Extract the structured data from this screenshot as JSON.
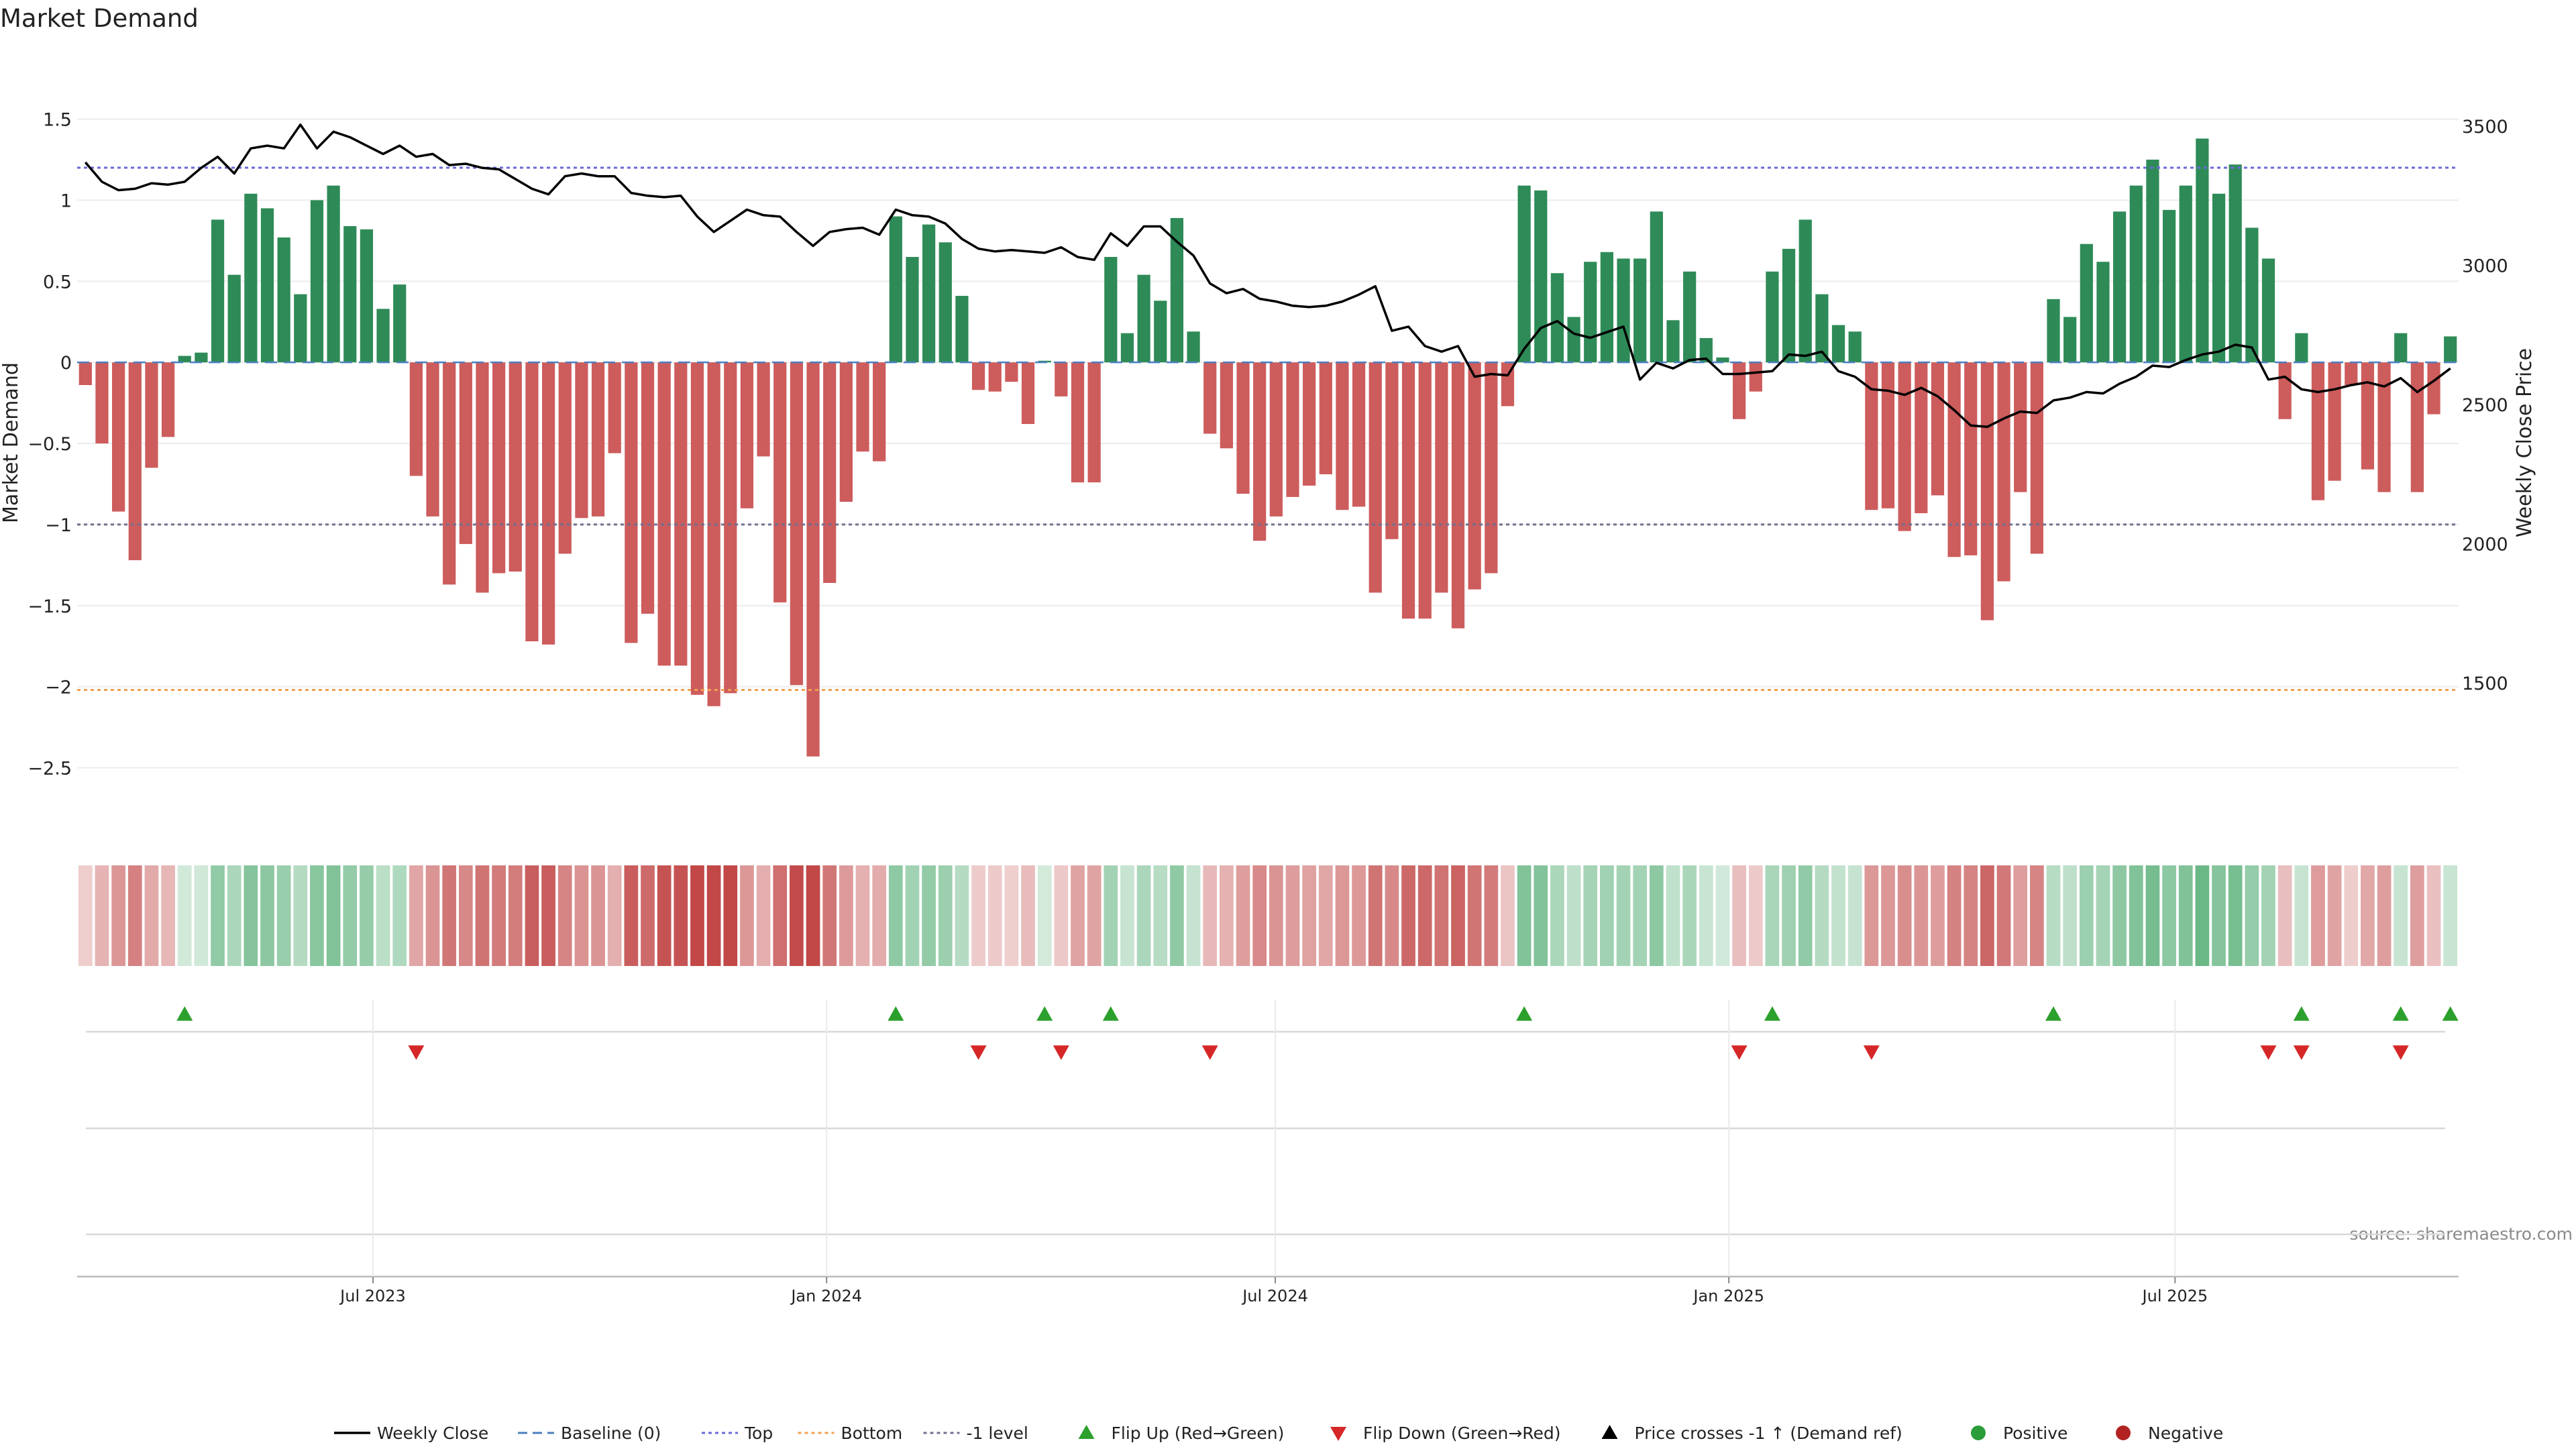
{
  "chart_data": {
    "type": "bar",
    "title": "Market Demand",
    "ylabel": "Market Demand",
    "y2label": "Weekly Close Price",
    "source": "source: sharemaestro.com",
    "ylim": [
      -2.75,
      1.8
    ],
    "y2lim": [
      1050,
      3700
    ],
    "yticks": [
      "1.5",
      "1",
      "0.5",
      "0",
      "−0.5",
      "−1",
      "−1.5",
      "−2",
      "−2.5"
    ],
    "y2ticks": [
      "3500",
      "3000",
      "2500",
      "2000",
      "1500"
    ],
    "reference_lines": {
      "top": 1.2,
      "bottom": -2.02,
      "minus_one": -1,
      "baseline": 0
    },
    "x_start": "2023-03-03",
    "x_end": "2025-10-24",
    "xticks": [
      {
        "date": "2023-07-01",
        "label": "Jul 2023"
      },
      {
        "date": "2024-01-01",
        "label": "Jan 2024"
      },
      {
        "date": "2024-07-01",
        "label": "Jul 2024"
      },
      {
        "date": "2025-01-01",
        "label": "Jan 2025"
      },
      {
        "date": "2025-07-01",
        "label": "Jul 2025"
      }
    ],
    "colors": {
      "positive": "#2e8b57",
      "negative": "#cd5c5c",
      "price": "#000000",
      "top": "#6a6ad8",
      "bottom": "#f0a050",
      "minus_one": "#707090",
      "flip_up": "#2ca02c",
      "flip_down": "#d62728"
    },
    "demand": [
      -0.14,
      -0.5,
      -0.92,
      -1.22,
      -0.65,
      -0.46,
      0.04,
      0.06,
      0.88,
      0.54,
      1.04,
      0.95,
      0.77,
      0.42,
      1.0,
      1.09,
      0.84,
      0.82,
      0.33,
      0.48,
      -0.7,
      -0.95,
      -1.37,
      -1.12,
      -1.42,
      -1.3,
      -1.29,
      -1.72,
      -1.74,
      -1.18,
      -0.96,
      -0.95,
      -0.56,
      -1.73,
      -1.55,
      -1.87,
      -1.87,
      -2.05,
      -2.12,
      -2.04,
      -0.9,
      -0.58,
      -1.48,
      -1.99,
      -2.43,
      -1.36,
      -0.86,
      -0.55,
      -0.61,
      0.9,
      0.65,
      0.85,
      0.74,
      0.41,
      -0.17,
      -0.18,
      -0.12,
      -0.38,
      0.01,
      -0.21,
      -0.74,
      -0.74,
      0.65,
      0.18,
      0.54,
      0.38,
      0.89,
      0.19,
      -0.44,
      -0.53,
      -0.81,
      -1.1,
      -0.95,
      -0.83,
      -0.76,
      -0.69,
      -0.91,
      -0.89,
      -1.42,
      -1.09,
      -1.58,
      -1.58,
      -1.42,
      -1.64,
      -1.4,
      -1.3,
      -0.27,
      1.09,
      1.06,
      0.55,
      0.28,
      0.62,
      0.68,
      0.64,
      0.64,
      0.93,
      0.26,
      0.56,
      0.15,
      0.03,
      -0.35,
      -0.18,
      0.56,
      0.7,
      0.88,
      0.42,
      0.23,
      0.19,
      -0.91,
      -0.9,
      -1.04,
      -0.93,
      -0.82,
      -1.2,
      -1.19,
      -1.59,
      -1.35,
      -0.8,
      -1.18,
      0.39,
      0.28,
      0.73,
      0.62,
      0.93,
      1.09,
      1.25,
      0.94,
      1.09,
      1.38,
      1.04,
      1.22,
      0.83,
      0.64,
      -0.35,
      0.18,
      -0.85,
      -0.73,
      -0.14,
      -0.66,
      -0.8,
      0.18,
      -0.8,
      -0.32,
      0.16
    ],
    "weekly_close": [
      3370,
      3300,
      3270,
      3275,
      3295,
      3290,
      3300,
      3350,
      3390,
      3330,
      3420,
      3430,
      3420,
      3505,
      3420,
      3480,
      3460,
      3430,
      3400,
      3430,
      3390,
      3400,
      3360,
      3365,
      3350,
      3345,
      3310,
      3275,
      3255,
      3320,
      3330,
      3320,
      3320,
      3260,
      3250,
      3245,
      3250,
      3175,
      3120,
      3160,
      3200,
      3180,
      3175,
      3120,
      3070,
      3120,
      3130,
      3135,
      3110,
      3200,
      3180,
      3175,
      3150,
      3095,
      3060,
      3050,
      3055,
      3050,
      3045,
      3065,
      3030,
      3020,
      3115,
      3070,
      3140,
      3140,
      3085,
      3035,
      2935,
      2900,
      2915,
      2880,
      2870,
      2855,
      2850,
      2855,
      2870,
      2895,
      2925,
      2765,
      2780,
      2710,
      2690,
      2710,
      2600,
      2610,
      2605,
      2700,
      2775,
      2800,
      2755,
      2740,
      2760,
      2780,
      2590,
      2650,
      2630,
      2660,
      2665,
      2610,
      2610,
      2615,
      2620,
      2680,
      2675,
      2690,
      2620,
      2600,
      2555,
      2550,
      2535,
      2560,
      2530,
      2480,
      2425,
      2420,
      2450,
      2475,
      2470,
      2515,
      2525,
      2545,
      2540,
      2575,
      2600,
      2640,
      2635,
      2660,
      2680,
      2690,
      2715,
      2705,
      2590,
      2600,
      2555,
      2545,
      2555,
      2570,
      2580,
      2565,
      2595,
      2545,
      2585,
      2630
    ],
    "flip_up_weeks": [
      6,
      49,
      58,
      62,
      87,
      102,
      119,
      134,
      140,
      143
    ],
    "flip_down_weeks": [
      20,
      54,
      59,
      68,
      100,
      108,
      132,
      134,
      140
    ],
    "legend": [
      {
        "label": "Weekly Close",
        "marker": "line"
      },
      {
        "label": "Baseline (0)",
        "marker": "dash"
      },
      {
        "label": "Top",
        "marker": "dot-blue"
      },
      {
        "label": "Bottom",
        "marker": "dot-orange"
      },
      {
        "label": "-1 level",
        "marker": "dot-gray"
      },
      {
        "label": "Flip Up (Red→Green)",
        "marker": "tri-up-green"
      },
      {
        "label": "Flip Down (Green→Red)",
        "marker": "tri-down-red"
      },
      {
        "label": "Price crosses -1 ↑ (Demand ref)",
        "marker": "tri-up-black"
      },
      {
        "label": "Positive",
        "marker": "circle-green"
      },
      {
        "label": "Negative",
        "marker": "circle-red"
      }
    ]
  }
}
